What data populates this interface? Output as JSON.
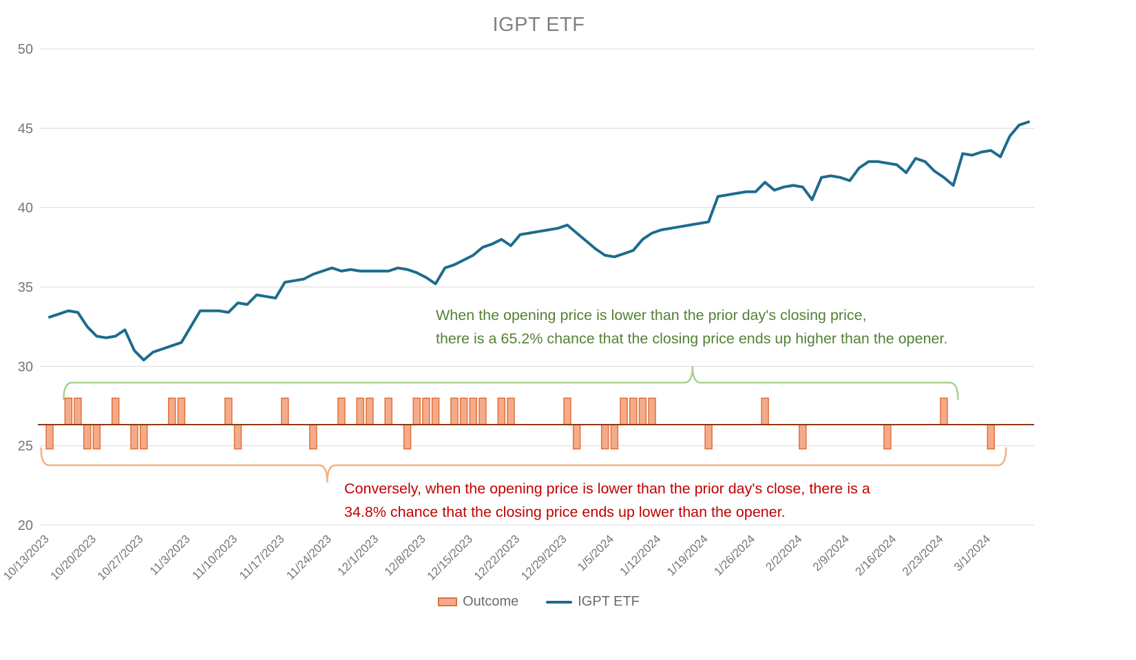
{
  "title": "IGPT ETF",
  "legend": {
    "outcome_label": "Outcome",
    "line_label": "IGPT ETF"
  },
  "annotations": {
    "green": {
      "line1": "When the opening price is lower than the prior day's closing price,",
      "line2": "there is a 65.2% chance that the closing price ends up higher than the opener.",
      "color": "#538135"
    },
    "red": {
      "line1": "Conversely, when the opening price is lower than the prior day's close, there is a",
      "line2": "34.8% chance that the closing price ends up lower than the opener.",
      "color": "#C00000"
    }
  },
  "colors": {
    "line": "#1d6c8d",
    "bar_fill": "#f5ab89",
    "bar_stroke": "#e2703a",
    "bar_baseline": "#8b3a0f",
    "grid": "#d9d9d9",
    "axis_text": "#757575",
    "title_text": "#7f7f7f",
    "green_brace": "#a9d18e",
    "orange_brace": "#f4b183"
  },
  "chart_data": {
    "type": "combo",
    "title": "IGPT ETF",
    "ylim": [
      20,
      50
    ],
    "y_ticks": [
      20,
      25,
      30,
      35,
      40,
      45,
      50
    ],
    "grid": true,
    "legend_position": "bottom",
    "x_tick_interval": 5,
    "x_tick_labels": [
      "10/13/2023",
      "10/20/2023",
      "10/27/2023",
      "11/3/2023",
      "11/10/2023",
      "11/17/2023",
      "11/24/2023",
      "12/1/2023",
      "12/8/2023",
      "12/15/2023",
      "12/22/2023",
      "12/29/2023",
      "1/5/2024",
      "1/12/2024",
      "1/19/2024",
      "1/26/2024",
      "2/2/2024",
      "2/9/2024",
      "2/16/2024",
      "2/23/2024",
      "3/1/2024"
    ],
    "series": [
      {
        "name": "IGPT ETF",
        "type": "line",
        "color": "#1d6c8d",
        "values": [
          33.1,
          33.3,
          33.5,
          33.4,
          32.5,
          31.9,
          31.8,
          31.9,
          32.3,
          31.0,
          30.4,
          30.9,
          31.1,
          31.3,
          31.5,
          32.5,
          33.5,
          33.5,
          33.5,
          33.4,
          34.0,
          33.9,
          34.5,
          34.4,
          34.3,
          35.3,
          35.4,
          35.5,
          35.8,
          36.0,
          36.2,
          36.0,
          36.1,
          36.0,
          36.0,
          36.0,
          36.0,
          36.2,
          36.1,
          35.9,
          35.6,
          35.2,
          36.2,
          36.4,
          36.7,
          37.0,
          37.5,
          37.7,
          38.0,
          37.6,
          38.3,
          38.4,
          38.5,
          38.6,
          38.7,
          38.9,
          38.4,
          37.9,
          37.4,
          37.0,
          36.9,
          37.1,
          37.3,
          38.0,
          38.4,
          38.6,
          38.7,
          38.8,
          38.9,
          39.0,
          39.1,
          40.7,
          40.8,
          40.9,
          41.0,
          41.0,
          41.6,
          41.1,
          41.3,
          41.4,
          41.3,
          40.5,
          41.9,
          42.0,
          41.9,
          41.7,
          42.5,
          42.9,
          42.9,
          42.8,
          42.7,
          42.2,
          43.1,
          42.9,
          42.3,
          41.9,
          41.4,
          43.4,
          43.3,
          43.5,
          43.6,
          43.2,
          44.5,
          45.2,
          45.4
        ]
      },
      {
        "name": "Outcome",
        "type": "bar",
        "fill": "#f5ab89",
        "stroke": "#e2703a",
        "baseline": 26.33,
        "up_value": 28.0,
        "down_value": 24.8,
        "directions": [
          -1,
          0,
          1,
          1,
          -1,
          -1,
          0,
          1,
          0,
          -1,
          -1,
          0,
          0,
          1,
          1,
          0,
          0,
          0,
          0,
          1,
          -1,
          0,
          0,
          0,
          0,
          1,
          0,
          0,
          -1,
          0,
          0,
          1,
          0,
          1,
          1,
          0,
          1,
          0,
          -1,
          1,
          1,
          1,
          0,
          1,
          1,
          1,
          1,
          0,
          1,
          1,
          0,
          0,
          0,
          0,
          0,
          1,
          -1,
          0,
          0,
          -1,
          -1,
          1,
          1,
          1,
          1,
          0,
          0,
          0,
          0,
          0,
          -1,
          0,
          0,
          0,
          0,
          0,
          1,
          0,
          0,
          0,
          -1,
          0,
          0,
          0,
          0,
          0,
          0,
          0,
          0,
          -1,
          0,
          0,
          0,
          0,
          0,
          1,
          0,
          0,
          0,
          0,
          -1,
          0,
          0,
          0,
          0
        ]
      }
    ],
    "braces": {
      "green": {
        "from_index": 1.5,
        "to_index": 96.5,
        "tip_index": 68.3,
        "color": "#a9d18e"
      },
      "orange": {
        "from_index": -0.9,
        "to_index": 101.6,
        "tip_index": 29.5,
        "color": "#f4b183"
      }
    }
  }
}
